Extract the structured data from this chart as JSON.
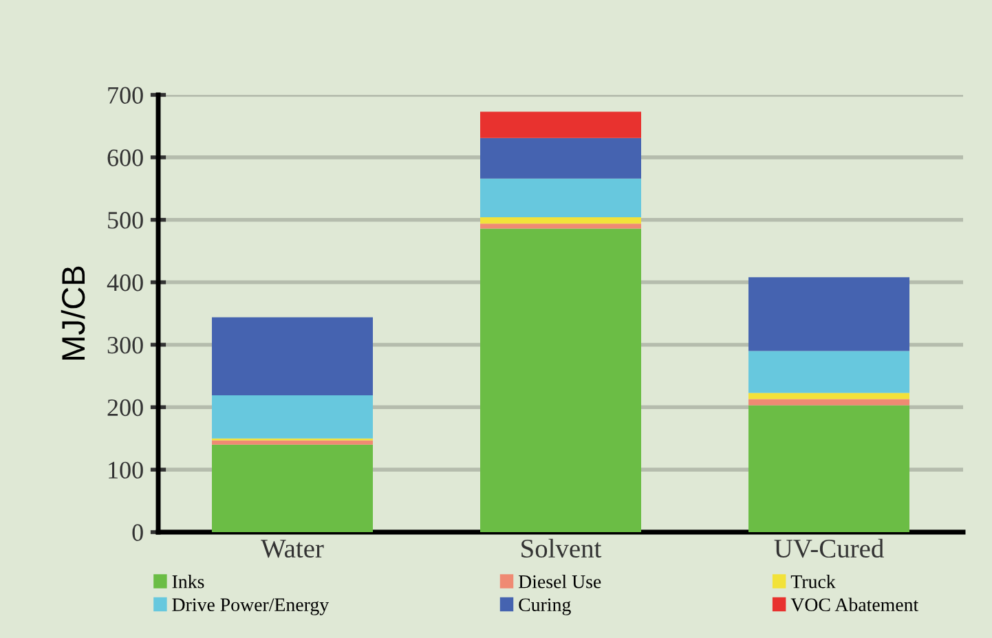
{
  "chart_data": {
    "type": "bar",
    "stacked": true,
    "ylabel": "MJ/CB",
    "categories": [
      "Water",
      "Solvent",
      "UV-Cured"
    ],
    "series": [
      {
        "name": "Inks",
        "color": "#6bbd45",
        "values": [
          140,
          486,
          203
        ]
      },
      {
        "name": "Diesel Use",
        "color": "#ef8a73",
        "values": [
          7,
          8,
          10
        ]
      },
      {
        "name": "Truck",
        "color": "#f2e23a",
        "values": [
          3,
          10,
          10
        ]
      },
      {
        "name": "Drive Power/Energy",
        "color": "#67c8de",
        "values": [
          69,
          62,
          67
        ]
      },
      {
        "name": "Curing",
        "color": "#4563b0",
        "values": [
          125,
          65,
          118
        ]
      },
      {
        "name": "VOC Abatement",
        "color": "#e8322f",
        "values": [
          0,
          42,
          0
        ]
      }
    ],
    "ylim": [
      0,
      700
    ],
    "yticks": [
      0,
      100,
      200,
      300,
      400,
      500,
      600,
      700
    ],
    "grid": "y",
    "legend": "bottom"
  }
}
